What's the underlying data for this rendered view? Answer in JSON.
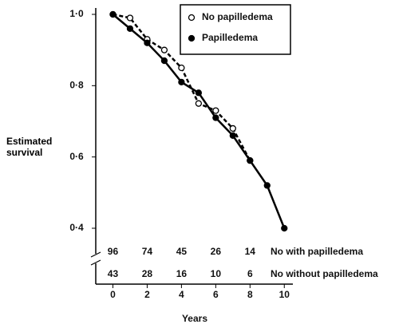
{
  "chart_data": {
    "type": "line",
    "xlabel": "Years",
    "ylabel": "Estimated survival",
    "x": [
      0,
      1,
      2,
      3,
      4,
      5,
      6,
      7,
      8,
      9,
      10
    ],
    "series": [
      {
        "name": "No papilledema",
        "color": "#000000",
        "marker": "open",
        "dashed": true,
        "values": [
          1.0,
          0.99,
          0.93,
          0.9,
          0.85,
          0.75,
          0.73,
          0.68,
          0.59,
          null,
          null
        ]
      },
      {
        "name": "Papilledema",
        "color": "#000000",
        "marker": "filled",
        "dashed": false,
        "values": [
          1.0,
          0.96,
          0.92,
          0.87,
          0.81,
          0.78,
          0.71,
          0.66,
          0.59,
          0.52,
          0.4
        ]
      }
    ],
    "xlim": [
      -1,
      10.5
    ],
    "xticks": [
      0,
      2,
      4,
      6,
      8,
      10
    ],
    "ylim": [
      0.4,
      1.0
    ],
    "yticks": [
      {
        "value": 0.4,
        "label": "0·4"
      },
      {
        "value": 0.6,
        "label": "0·6"
      },
      {
        "value": 0.8,
        "label": "0·8"
      },
      {
        "value": 1.0,
        "label": "1·0"
      }
    ],
    "at_risk_x": [
      0,
      2,
      4,
      6,
      8
    ],
    "at_risk": [
      {
        "label": "No with papilledema",
        "values": [
          96,
          74,
          45,
          26,
          14
        ]
      },
      {
        "label": "No without papilledema",
        "values": [
          43,
          28,
          16,
          10,
          6
        ]
      }
    ]
  }
}
